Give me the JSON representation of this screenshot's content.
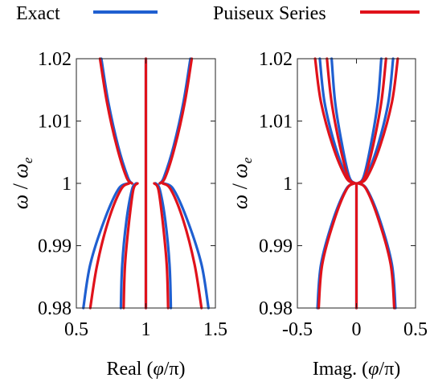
{
  "legend": {
    "entries": [
      {
        "label": "Exact",
        "color": "#1f5fd0"
      },
      {
        "label": "Puiseux Series",
        "color": "#e0121b"
      }
    ]
  },
  "chart_data": [
    {
      "type": "line",
      "xlabel_prefix": "Real (",
      "xlabel_symbol": "φ",
      "xlabel_suffix": "/π)",
      "ylabel_symbol": "ω",
      "ylabel_sep": " / ",
      "ylabel_sub_base": "ω",
      "ylabel_sub": "e",
      "xlim": [
        0.5,
        1.5
      ],
      "ylim": [
        0.98,
        1.02
      ],
      "xticks": [
        0.5,
        1,
        1.5
      ],
      "xtick_labels": [
        "0.5",
        "1",
        "1.5"
      ],
      "yticks": [
        0.98,
        0.99,
        1,
        1.01,
        1.02
      ],
      "ytick_labels": [
        "0.98",
        "0.99",
        "1",
        "1.01",
        "1.02"
      ],
      "grid": false,
      "series": [
        {
          "name": "Exact",
          "color": "#1f5fd0",
          "curves": [
            {
              "x": [
                0.68,
                0.73,
                0.8,
                0.87,
                0.9
              ],
              "y": [
                1.02,
                1.013,
                1.006,
                1.001,
                1.0
              ]
            },
            {
              "x": [
                1.32,
                1.27,
                1.2,
                1.13,
                1.1
              ],
              "y": [
                1.02,
                1.013,
                1.006,
                1.001,
                1.0
              ]
            },
            {
              "x": [
                0.55,
                0.6,
                0.7,
                0.8,
                0.87
              ],
              "y": [
                0.98,
                0.987,
                0.994,
                0.999,
                1.0
              ]
            },
            {
              "x": [
                0.82,
                0.83,
                0.86,
                0.9,
                0.93
              ],
              "y": [
                0.98,
                0.987,
                0.994,
                0.999,
                1.0
              ]
            },
            {
              "x": [
                1.45,
                1.4,
                1.3,
                1.2,
                1.13
              ],
              "y": [
                0.98,
                0.987,
                0.994,
                0.999,
                1.0
              ]
            },
            {
              "x": [
                1.18,
                1.17,
                1.14,
                1.1,
                1.07
              ],
              "y": [
                0.98,
                0.987,
                0.994,
                0.999,
                1.0
              ]
            },
            {
              "x": [
                1.0,
                1.0
              ],
              "y": [
                0.98,
                1.02
              ]
            }
          ]
        },
        {
          "name": "Puiseux Series",
          "color": "#e0121b",
          "curves": [
            {
              "x": [
                0.67,
                0.72,
                0.79,
                0.86,
                0.9
              ],
              "y": [
                1.02,
                1.013,
                1.006,
                1.001,
                1.0
              ]
            },
            {
              "x": [
                1.33,
                1.28,
                1.21,
                1.14,
                1.1
              ],
              "y": [
                1.02,
                1.013,
                1.006,
                1.001,
                1.0
              ]
            },
            {
              "x": [
                0.6,
                0.65,
                0.73,
                0.82,
                0.88
              ],
              "y": [
                0.98,
                0.987,
                0.994,
                0.999,
                1.0
              ]
            },
            {
              "x": [
                0.84,
                0.85,
                0.88,
                0.91,
                0.94
              ],
              "y": [
                0.98,
                0.987,
                0.994,
                0.999,
                1.0
              ]
            },
            {
              "x": [
                1.4,
                1.35,
                1.27,
                1.18,
                1.12
              ],
              "y": [
                0.98,
                0.987,
                0.994,
                0.999,
                1.0
              ]
            },
            {
              "x": [
                1.16,
                1.15,
                1.12,
                1.09,
                1.06
              ],
              "y": [
                0.98,
                0.987,
                0.994,
                0.999,
                1.0
              ]
            },
            {
              "x": [
                1.0,
                1.0
              ],
              "y": [
                0.98,
                1.02
              ]
            }
          ]
        }
      ]
    },
    {
      "type": "line",
      "xlabel_prefix": "Imag. (",
      "xlabel_symbol": "φ",
      "xlabel_suffix": "/π)",
      "ylabel_symbol": "ω",
      "ylabel_sep": " / ",
      "ylabel_sub_base": "ω",
      "ylabel_sub": "e",
      "xlim": [
        -0.5,
        0.5
      ],
      "ylim": [
        0.98,
        1.02
      ],
      "xticks": [
        -0.5,
        0,
        0.5
      ],
      "xtick_labels": [
        "-0.5",
        "0",
        "0.5"
      ],
      "yticks": [
        0.98,
        0.99,
        1,
        1.01,
        1.02
      ],
      "ytick_labels": [
        "0.98",
        "0.99",
        "1",
        "1.01",
        "1.02"
      ],
      "grid": false,
      "series": [
        {
          "name": "Exact",
          "color": "#1f5fd0",
          "curves": [
            {
              "x": [
                -0.21,
                -0.18,
                -0.12,
                -0.06,
                -0.01
              ],
              "y": [
                1.02,
                1.013,
                1.006,
                1.001,
                1.0
              ]
            },
            {
              "x": [
                0.21,
                0.18,
                0.12,
                0.06,
                0.01
              ],
              "y": [
                1.02,
                1.013,
                1.006,
                1.001,
                1.0
              ]
            },
            {
              "x": [
                -0.31,
                -0.27,
                -0.18,
                -0.08,
                -0.02
              ],
              "y": [
                1.02,
                1.013,
                1.006,
                1.001,
                1.0
              ]
            },
            {
              "x": [
                0.31,
                0.27,
                0.18,
                0.08,
                0.02
              ],
              "y": [
                1.02,
                1.013,
                1.006,
                1.001,
                1.0
              ]
            },
            {
              "x": [
                -0.33,
                -0.3,
                -0.2,
                -0.09,
                -0.02
              ],
              "y": [
                0.98,
                0.987,
                0.994,
                0.999,
                1.0
              ]
            },
            {
              "x": [
                0.33,
                0.3,
                0.2,
                0.09,
                0.02
              ],
              "y": [
                0.98,
                0.987,
                0.994,
                0.999,
                1.0
              ]
            },
            {
              "x": [
                0.0,
                0.0
              ],
              "y": [
                0.98,
                1.0
              ]
            }
          ]
        },
        {
          "name": "Puiseux Series",
          "color": "#e0121b",
          "curves": [
            {
              "x": [
                -0.25,
                -0.21,
                -0.14,
                -0.07,
                -0.01
              ],
              "y": [
                1.02,
                1.013,
                1.006,
                1.001,
                1.0
              ]
            },
            {
              "x": [
                0.25,
                0.21,
                0.14,
                0.07,
                0.01
              ],
              "y": [
                1.02,
                1.013,
                1.006,
                1.001,
                1.0
              ]
            },
            {
              "x": [
                -0.35,
                -0.3,
                -0.2,
                -0.09,
                -0.02
              ],
              "y": [
                1.02,
                1.013,
                1.006,
                1.001,
                1.0
              ]
            },
            {
              "x": [
                0.35,
                0.3,
                0.2,
                0.09,
                0.02
              ],
              "y": [
                1.02,
                1.013,
                1.006,
                1.001,
                1.0
              ]
            },
            {
              "x": [
                -0.32,
                -0.29,
                -0.19,
                -0.085,
                -0.02
              ],
              "y": [
                0.98,
                0.987,
                0.994,
                0.999,
                1.0
              ]
            },
            {
              "x": [
                0.32,
                0.29,
                0.19,
                0.085,
                0.02
              ],
              "y": [
                0.98,
                0.987,
                0.994,
                0.999,
                1.0
              ]
            },
            {
              "x": [
                0.0,
                0.0
              ],
              "y": [
                0.98,
                1.0
              ]
            }
          ]
        }
      ]
    }
  ]
}
